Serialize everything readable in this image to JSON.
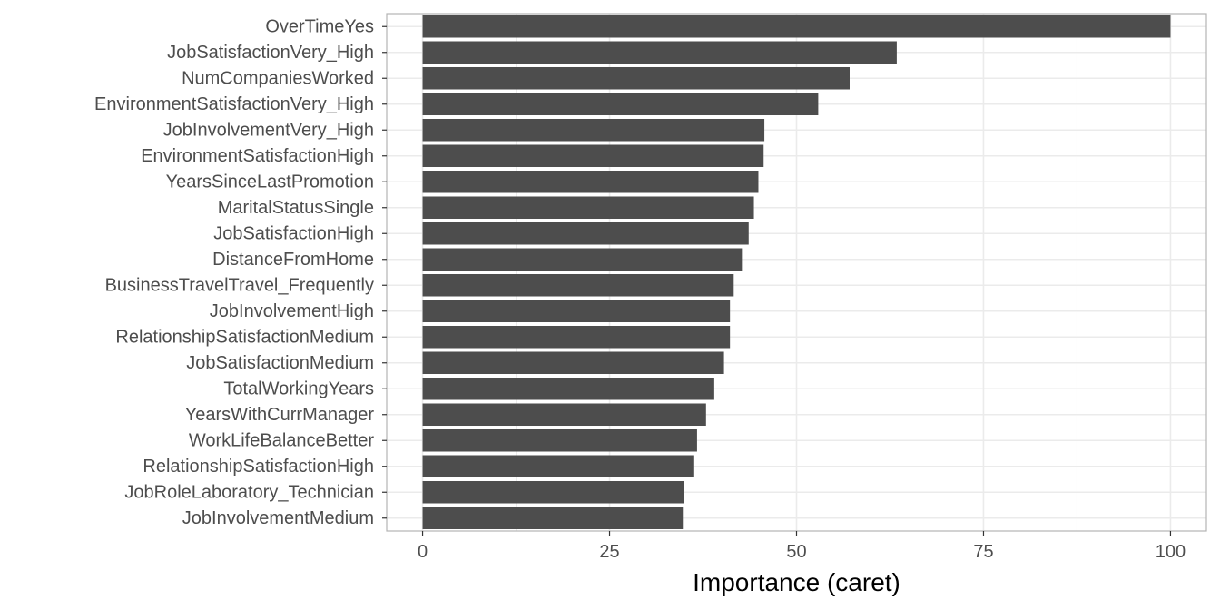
{
  "chart_data": {
    "type": "bar",
    "orientation": "horizontal",
    "title": "",
    "xlabel": "Importance (caret)",
    "ylabel": "",
    "xlim": [
      -4.8,
      104.8
    ],
    "xticks": [
      0,
      25,
      50,
      75,
      100
    ],
    "grid": true,
    "legend": "none",
    "colors": {
      "bar": "#4d4d4d",
      "grid": "#ebebeb",
      "border": "#b3b3b3"
    },
    "categories": [
      "OverTimeYes",
      "JobSatisfactionVery_High",
      "NumCompaniesWorked",
      "EnvironmentSatisfactionVery_High",
      "JobInvolvementVery_High",
      "EnvironmentSatisfactionHigh",
      "YearsSinceLastPromotion",
      "MaritalStatusSingle",
      "JobSatisfactionHigh",
      "DistanceFromHome",
      "BusinessTravelTravel_Frequently",
      "JobInvolvementHigh",
      "RelationshipSatisfactionMedium",
      "JobSatisfactionMedium",
      "TotalWorkingYears",
      "YearsWithCurrManager",
      "WorkLifeBalanceBetter",
      "RelationshipSatisfactionHigh",
      "JobRoleLaboratory_Technician",
      "JobInvolvementMedium"
    ],
    "values": [
      100,
      63.4,
      57.1,
      52.9,
      45.7,
      45.6,
      44.9,
      44.3,
      43.6,
      42.7,
      41.6,
      41.1,
      41.1,
      40.3,
      39.0,
      37.9,
      36.7,
      36.2,
      34.9,
      34.8
    ]
  }
}
